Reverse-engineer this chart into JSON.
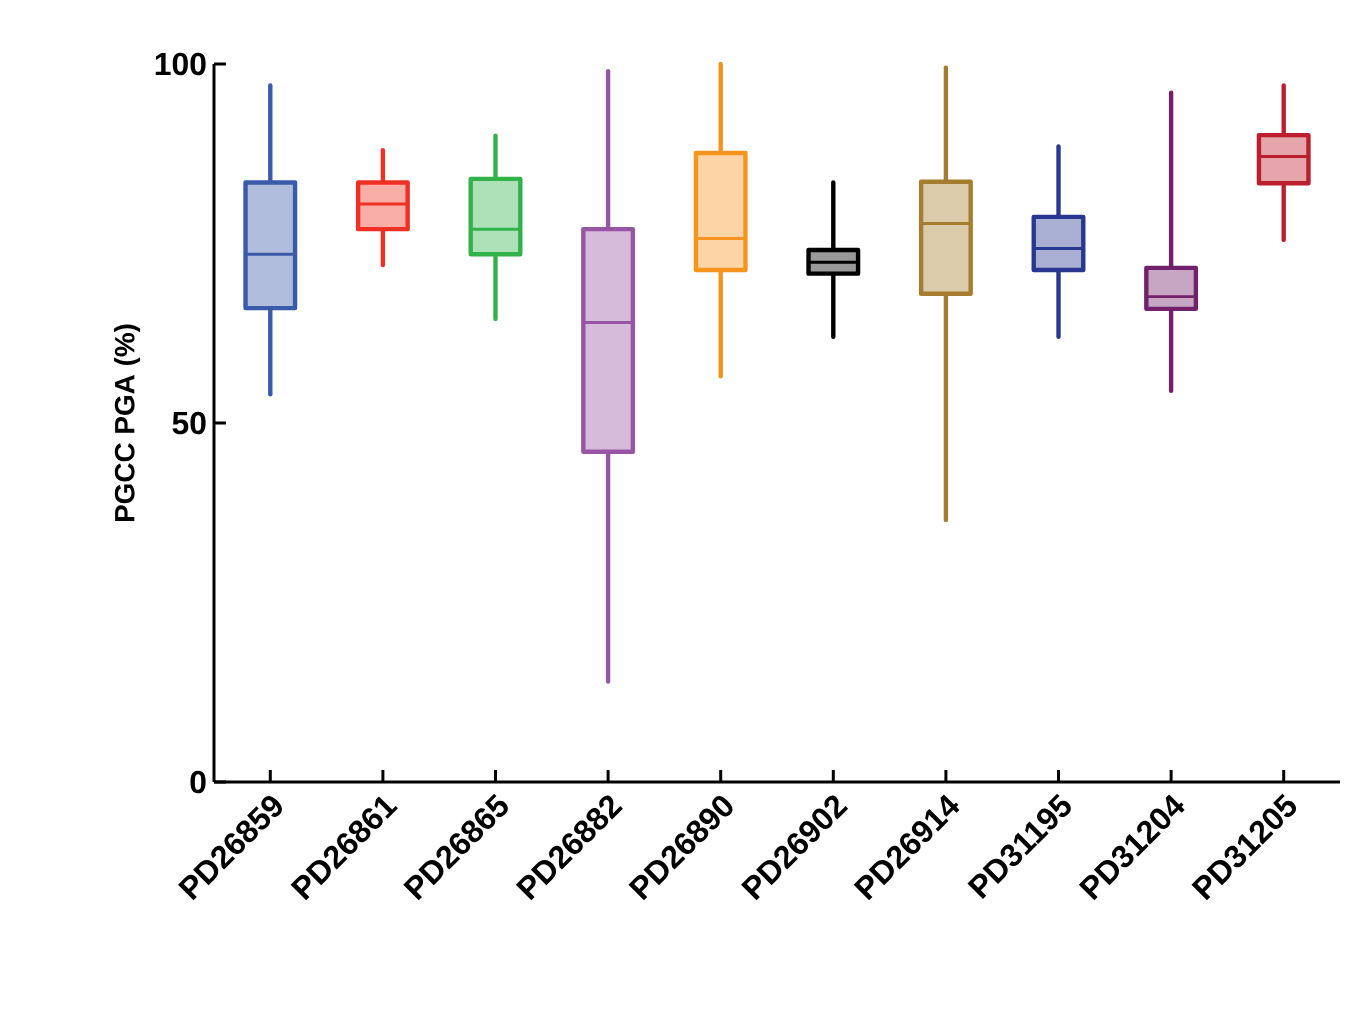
{
  "chart_data": {
    "type": "box",
    "ylabel": "PGCC PGA (%)",
    "categories": [
      "PD26859",
      "PD26861",
      "PD26865",
      "PD26882",
      "PD26890",
      "PD26902",
      "PD26914",
      "PD31195",
      "PD31204",
      "PD31205"
    ],
    "colors": [
      "#3a5ba9",
      "#ee3124",
      "#31b34a",
      "#9855a5",
      "#f7941d",
      "#000000",
      "#a67c2e",
      "#283891",
      "#722069",
      "#bd1e2d"
    ],
    "boxes": [
      {
        "low": 54,
        "q1": 66,
        "median": 73.5,
        "q3": 83.5,
        "high": 97
      },
      {
        "low": 72,
        "q1": 77,
        "median": 80.5,
        "q3": 83.5,
        "high": 88
      },
      {
        "low": 64.5,
        "q1": 73.5,
        "median": 77,
        "q3": 84,
        "high": 90
      },
      {
        "low": 14,
        "q1": 46,
        "median": 64,
        "q3": 77,
        "high": 99
      },
      {
        "low": 56.5,
        "q1": 71.3,
        "median": 75.7,
        "q3": 87.6,
        "high": 100
      },
      {
        "low": 62,
        "q1": 70.8,
        "median": 72.4,
        "q3": 74.1,
        "high": 83.5
      },
      {
        "low": 36.5,
        "q1": 68,
        "median": 77.8,
        "q3": 83.6,
        "high": 99.5
      },
      {
        "low": 62,
        "q1": 71.3,
        "median": 74.3,
        "q3": 78.7,
        "high": 88.5
      },
      {
        "low": 54.5,
        "q1": 65.9,
        "median": 67.6,
        "q3": 71.6,
        "high": 96
      },
      {
        "low": 75.5,
        "q1": 83.4,
        "median": 87.1,
        "q3": 90.1,
        "high": 97
      }
    ],
    "ylim": [
      0,
      100
    ],
    "yticks": [
      0,
      50,
      100
    ]
  }
}
